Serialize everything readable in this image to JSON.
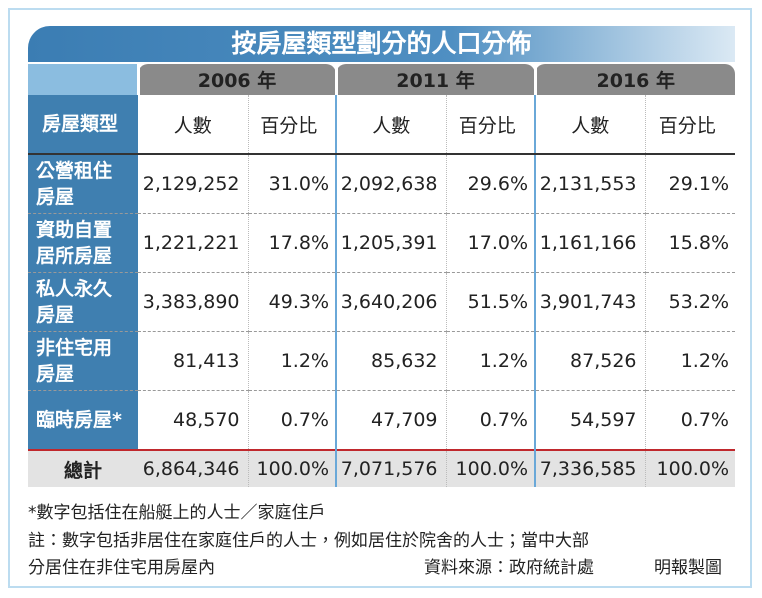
{
  "title": "按房屋類型劃分的人口分佈",
  "table": {
    "years": [
      "2006 年",
      "2011 年",
      "2016 年"
    ],
    "header": [
      "房屋類型",
      "人數",
      "百分比",
      "人數",
      "百分比",
      "人數",
      "百分比"
    ],
    "rows": [
      [
        "公營租住房屋",
        "2,129,252",
        "31.0%",
        "2,092,638",
        "29.6%",
        "2,131,553",
        "29.1%"
      ],
      [
        "資助自置居所房屋",
        "1,221,221",
        "17.8%",
        "1,205,391",
        "17.0%",
        "1,161,166",
        "15.8%"
      ],
      [
        "私人永久房屋",
        "3,383,890",
        "49.3%",
        "3,640,206",
        "51.5%",
        "3,901,743",
        "53.2%"
      ],
      [
        "非住宅用房屋",
        "81,413",
        "1.2%",
        "85,632",
        "1.2%",
        "87,526",
        "1.2%"
      ],
      [
        "臨時房屋*",
        "48,570",
        "0.7%",
        "47,709",
        "0.7%",
        "54,597",
        "0.7%"
      ]
    ],
    "total": [
      "總計",
      "6,864,346",
      "100.0%",
      "7,071,576",
      "100.0%",
      "7,336,585",
      "100.0%"
    ]
  },
  "notes": [
    "*數字包括住在船艇上的人士／家庭住戶",
    "註：數字包括非居住在家庭住戶的人士，例如居住於院舍的人士；當中大部",
    "分居住在非住宅用房屋內"
  ],
  "source": "資料來源：政府統計處",
  "credit": "明報製圖"
}
